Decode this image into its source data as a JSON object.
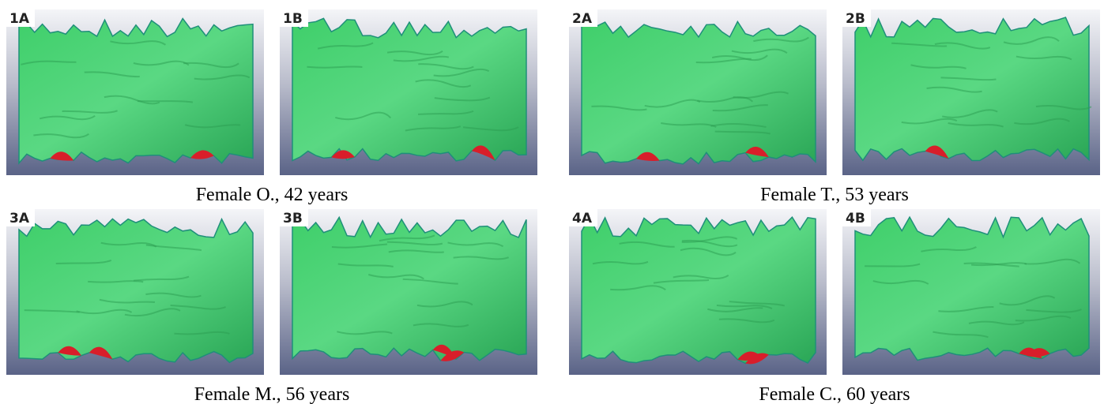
{
  "groups": [
    {
      "caption": "Female O., 42 years",
      "panels": [
        {
          "label": "1A"
        },
        {
          "label": "1B"
        }
      ]
    },
    {
      "caption": "Female T., 53 years",
      "panels": [
        {
          "label": "2A"
        },
        {
          "label": "2B"
        }
      ]
    },
    {
      "caption": "Female M., 56 years",
      "panels": [
        {
          "label": "3A"
        },
        {
          "label": "3B"
        }
      ]
    },
    {
      "caption": "Female C., 60 years",
      "panels": [
        {
          "label": "4A"
        },
        {
          "label": "4B"
        }
      ]
    }
  ]
}
